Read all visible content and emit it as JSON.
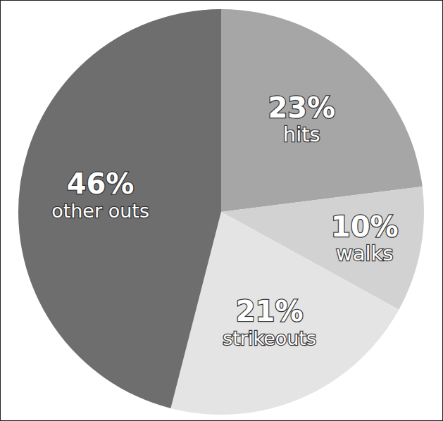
{
  "chart_data": {
    "type": "pie",
    "categories": [
      "hits",
      "walks",
      "strikeouts",
      "other outs"
    ],
    "values": [
      23,
      10,
      21,
      46
    ],
    "value_labels": [
      "23%",
      "10%",
      "21%",
      "46%"
    ],
    "colors": [
      "#a6a6a6",
      "#d2d2d2",
      "#e4e4e4",
      "#6e6e6e"
    ],
    "data_labels": true
  }
}
